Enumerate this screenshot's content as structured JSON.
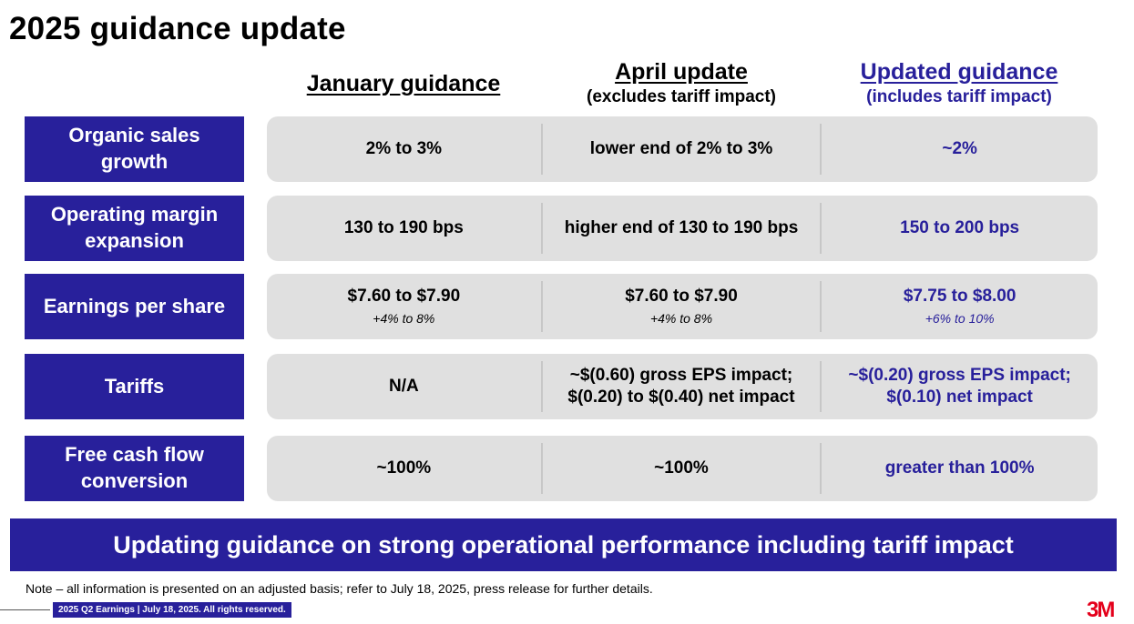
{
  "title": "2025 guidance update",
  "columns": {
    "january": {
      "label": "January guidance",
      "sub": ""
    },
    "april": {
      "label": "April update",
      "sub": "(excludes tariff impact)"
    },
    "updated": {
      "label": "Updated guidance",
      "sub": "(includes tariff impact)"
    }
  },
  "rows": [
    {
      "label": "Organic sales growth",
      "jan": "2% to 3%",
      "jan_note": "",
      "apr": "lower end of 2% to 3%",
      "apr_note": "",
      "upd": "~2%",
      "upd_note": ""
    },
    {
      "label": "Operating margin expansion",
      "jan": "130 to 190 bps",
      "jan_note": "",
      "apr": "higher end of 130 to 190 bps",
      "apr_note": "",
      "upd": "150 to 200 bps",
      "upd_note": ""
    },
    {
      "label": "Earnings per share",
      "jan": "$7.60 to $7.90",
      "jan_note": "+4% to 8%",
      "apr": "$7.60 to $7.90",
      "apr_note": "+4% to 8%",
      "upd": "$7.75 to $8.00",
      "upd_note": "+6% to 10%"
    },
    {
      "label": "Tariffs",
      "jan": "N/A",
      "jan_note": "",
      "apr": "~$(0.60) gross EPS impact;",
      "apr_note": "$(0.20) to $(0.40) net impact",
      "upd": "~$(0.20) gross EPS impact;",
      "upd_note": "$(0.10) net impact"
    },
    {
      "label": "Free cash flow conversion",
      "jan": "~100%",
      "jan_note": "",
      "apr": "~100%",
      "apr_note": "",
      "upd": "greater than 100%",
      "upd_note": ""
    }
  ],
  "banner": "Updating guidance on strong operational performance including tariff impact",
  "footnote": "Note – all information is presented on an adjusted basis; refer to July 18, 2025, press release for further details.",
  "footer_tag": "2025 Q2 Earnings | July 18, 2025. All rights reserved.",
  "logo": "3M",
  "colors": {
    "brand_blue": "#28209b",
    "row_gray": "#e0e0e0",
    "logo_red": "#e4001b"
  }
}
